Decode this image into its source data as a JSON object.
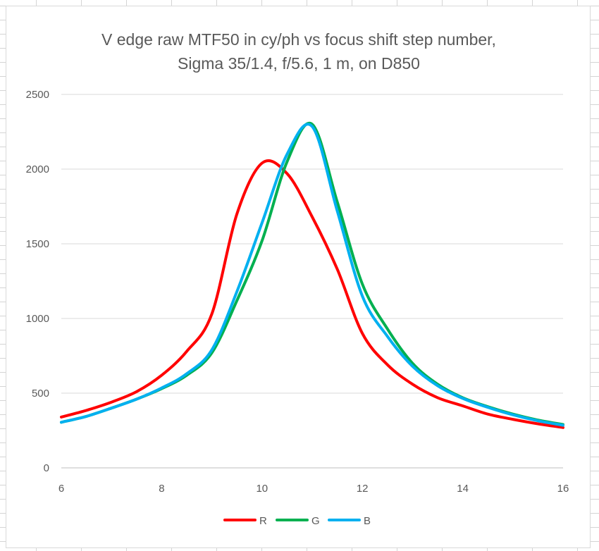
{
  "chart_data": {
    "type": "line",
    "title": "V edge raw MTF50 in cy/ph vs focus shift step number,",
    "subtitle": "Sigma 35/1.4, f/5.6, 1 m, on D850",
    "xlabel": "",
    "ylabel": "",
    "xlim": [
      6,
      16
    ],
    "ylim": [
      0,
      2500
    ],
    "x_ticks": [
      "6",
      "8",
      "10",
      "12",
      "14",
      "16"
    ],
    "y_ticks": [
      "0",
      "500",
      "1000",
      "1500",
      "2000",
      "2500"
    ],
    "grid": "horizontal",
    "legend_position": "bottom",
    "x": [
      6,
      6.5,
      7,
      7.5,
      8,
      8.5,
      9,
      9.5,
      10,
      10.5,
      11,
      11.5,
      12,
      12.5,
      13,
      13.5,
      14,
      14.5,
      15,
      15.5,
      16
    ],
    "series": [
      {
        "name": "R",
        "color": "#ff0000",
        "values": [
          340,
          385,
          440,
          510,
          620,
          780,
          1030,
          1700,
          2040,
          1970,
          1680,
          1330,
          900,
          690,
          560,
          470,
          415,
          360,
          325,
          295,
          270
        ]
      },
      {
        "name": "G",
        "color": "#00b050",
        "values": [
          305,
          345,
          400,
          460,
          530,
          620,
          770,
          1120,
          1520,
          2050,
          2300,
          1780,
          1230,
          930,
          700,
          560,
          470,
          410,
          360,
          320,
          290
        ]
      },
      {
        "name": "B",
        "color": "#00b0f0",
        "values": [
          305,
          345,
          400,
          460,
          535,
          630,
          790,
          1180,
          1640,
          2100,
          2285,
          1720,
          1150,
          880,
          680,
          550,
          465,
          405,
          355,
          315,
          285
        ]
      }
    ]
  }
}
